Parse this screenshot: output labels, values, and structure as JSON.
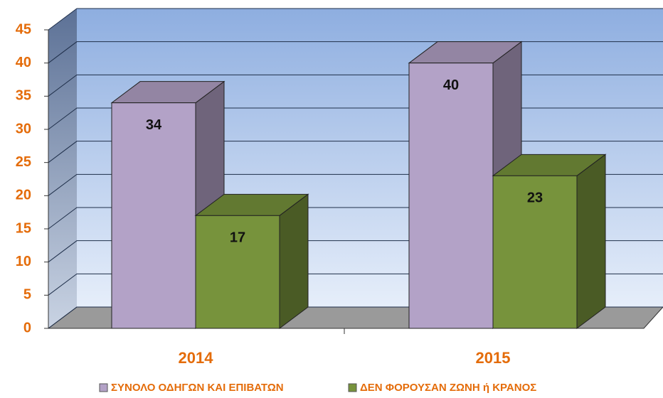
{
  "chart_data": {
    "type": "bar3d",
    "categories": [
      "2014",
      "2015"
    ],
    "series": [
      {
        "name": "ΣΥΝΟΛΟ ΟΔΗΓΩΝ ΚΑΙ ΕΠΙΒΑΤΩΝ",
        "color": "#b3a2c7",
        "values": [
          34,
          40
        ]
      },
      {
        "name": "ΔΕΝ ΦΟΡΟΥΣΑΝ ΖΩΝΗ ή ΚΡΑΝΟΣ",
        "color": "#77933c",
        "values": [
          17,
          23
        ]
      }
    ],
    "ylim": [
      0,
      45
    ],
    "yticks": [
      0,
      5,
      10,
      15,
      20,
      25,
      30,
      35,
      40,
      45
    ],
    "grid": true,
    "legend": "bottom"
  }
}
